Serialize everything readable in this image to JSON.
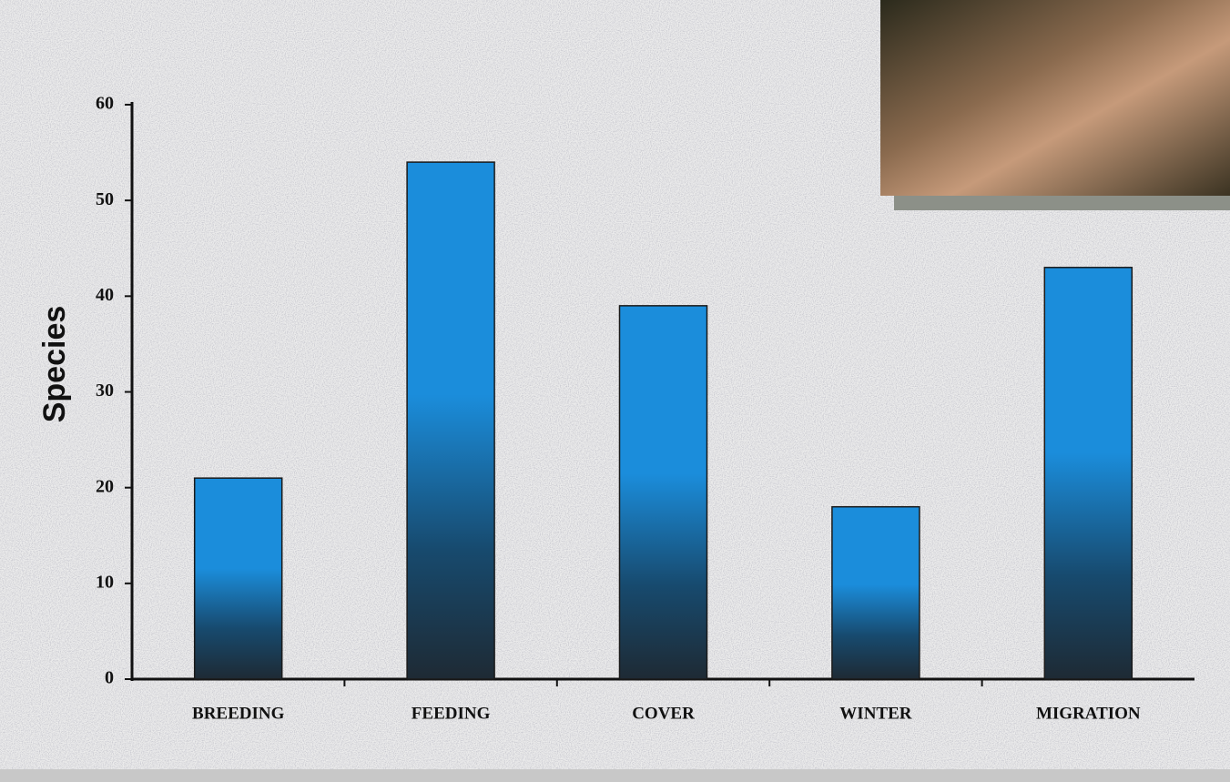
{
  "chart_data": {
    "type": "bar",
    "y_label": "Species",
    "categories": [
      "BREEDING",
      "FEEDING",
      "COVER",
      "WINTER",
      "MIGRATION"
    ],
    "values": [
      21,
      54,
      39,
      18,
      43
    ],
    "color": "#1b8ddb",
    "ylim": [
      0,
      60
    ],
    "yticks": [
      0,
      10,
      20,
      30,
      40,
      50,
      60
    ],
    "grid": false
  }
}
